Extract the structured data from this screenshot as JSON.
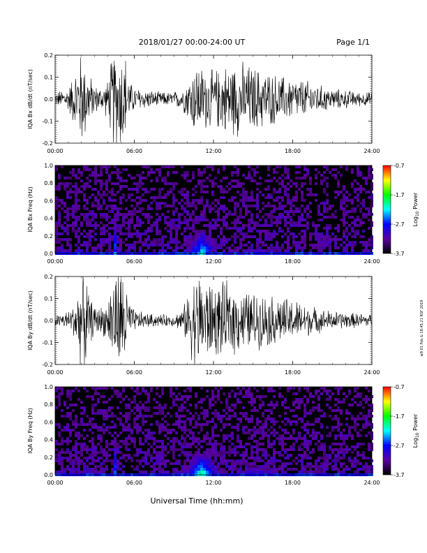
{
  "header": {
    "title": "2018/01/27  00:00-24:00 UT",
    "page": "Page 1/1"
  },
  "x_axis": {
    "ticks": [
      "00:00",
      "06:00",
      "12:00",
      "18:00",
      "24:00"
    ],
    "label": "Universal Time (hh:mm)"
  },
  "colorbar": {
    "ticks": [
      "-0.7",
      "-1.7",
      "-2.7",
      "-3.7"
    ],
    "label_prefix": "Log",
    "label_sub": "10",
    "label_suffix": " Power",
    "colors": [
      "#000000",
      "#5a00a0",
      "#0000ff",
      "#00ffff",
      "#00ff00",
      "#ffff00",
      "#ff0000"
    ]
  },
  "side_note": "w9 01 Feb & 18:45:21 RSF 2019",
  "chart_data": [
    {
      "type": "line",
      "ylabel": "IQA Bx dB/dt (nT/sec)",
      "yticks": [
        "0.2",
        "0.1",
        "0.0",
        "-0.1",
        "-0.2"
      ],
      "ylim": [
        -0.2,
        0.2
      ],
      "xlim": [
        0,
        24
      ],
      "envelope": [
        [
          0,
          0.03
        ],
        [
          1,
          0.05
        ],
        [
          1.5,
          0.12
        ],
        [
          2,
          0.21
        ],
        [
          2.5,
          0.12
        ],
        [
          3,
          0.06
        ],
        [
          3.5,
          0.05
        ],
        [
          4,
          0.08
        ],
        [
          4.4,
          0.21
        ],
        [
          5.3,
          0.21
        ],
        [
          5.6,
          0.08
        ],
        [
          6,
          0.05
        ],
        [
          7,
          0.04
        ],
        [
          8,
          0.03
        ],
        [
          9,
          0.03
        ],
        [
          9.7,
          0.05
        ],
        [
          10.2,
          0.1
        ],
        [
          10.7,
          0.16
        ],
        [
          11,
          0.14
        ],
        [
          12,
          0.12
        ],
        [
          13,
          0.15
        ],
        [
          14,
          0.16
        ],
        [
          15,
          0.14
        ],
        [
          16,
          0.12
        ],
        [
          17,
          0.1
        ],
        [
          18,
          0.09
        ],
        [
          19,
          0.08
        ],
        [
          20,
          0.06
        ],
        [
          21,
          0.045
        ],
        [
          22,
          0.04
        ],
        [
          23,
          0.03
        ],
        [
          24,
          0.03
        ]
      ]
    },
    {
      "type": "heatmap",
      "ylabel": "IQA Bx Freq (Hz)",
      "yticks": [
        "1.0",
        "0.8",
        "0.6",
        "0.4",
        "0.2",
        "0.0"
      ],
      "ylim": [
        0,
        1
      ],
      "xlim": [
        0,
        24
      ],
      "zlim": [
        -3.7,
        -0.7
      ],
      "features": [
        {
          "t": 4.5,
          "w": 0.15,
          "fmax": 0.55,
          "level": -1.6
        },
        {
          "t": 5.4,
          "w": 0.08,
          "fmax": 0.2,
          "level": -2.2
        },
        {
          "t": 1.7,
          "w": 0.6,
          "fmax": 0.12,
          "level": -2.4
        },
        {
          "t": 11.0,
          "w": 1.6,
          "fmax": 0.35,
          "level": -2.1
        },
        {
          "t": 15.0,
          "w": 3.0,
          "fmax": 0.12,
          "level": -2.7
        },
        {
          "t": 17.6,
          "w": 0.3,
          "fmax": 0.42,
          "level": -3.0
        }
      ]
    },
    {
      "type": "line",
      "ylabel": "IQA By dB/dt (nT/sec)",
      "yticks": [
        "0.2",
        "0.1",
        "0.0",
        "-0.1",
        "-0.2"
      ],
      "ylim": [
        -0.2,
        0.2
      ],
      "xlim": [
        0,
        24
      ],
      "envelope": [
        [
          0,
          0.025
        ],
        [
          1,
          0.04
        ],
        [
          1.5,
          0.08
        ],
        [
          2,
          0.21
        ],
        [
          2.3,
          0.21
        ],
        [
          2.6,
          0.1
        ],
        [
          3,
          0.06
        ],
        [
          3.5,
          0.06
        ],
        [
          4,
          0.08
        ],
        [
          4.4,
          0.21
        ],
        [
          5.3,
          0.21
        ],
        [
          5.6,
          0.08
        ],
        [
          6,
          0.045
        ],
        [
          7,
          0.03
        ],
        [
          8,
          0.025
        ],
        [
          9,
          0.025
        ],
        [
          9.7,
          0.05
        ],
        [
          10.2,
          0.14
        ],
        [
          10.7,
          0.21
        ],
        [
          11.5,
          0.18
        ],
        [
          12,
          0.15
        ],
        [
          13,
          0.16
        ],
        [
          14,
          0.13
        ],
        [
          15,
          0.12
        ],
        [
          16,
          0.11
        ],
        [
          17,
          0.1
        ],
        [
          18,
          0.09
        ],
        [
          19,
          0.07
        ],
        [
          20,
          0.05
        ],
        [
          21,
          0.04
        ],
        [
          22,
          0.035
        ],
        [
          23,
          0.03
        ],
        [
          24,
          0.03
        ]
      ]
    },
    {
      "type": "heatmap",
      "ylabel": "IQA By Freq (Hz)",
      "yticks": [
        "1.0",
        "0.8",
        "0.6",
        "0.4",
        "0.2",
        "0.0"
      ],
      "ylim": [
        0,
        1
      ],
      "xlim": [
        0,
        24
      ],
      "zlim": [
        -3.7,
        -0.7
      ],
      "features": [
        {
          "t": 4.5,
          "w": 0.15,
          "fmax": 0.6,
          "level": -1.7
        },
        {
          "t": 5.4,
          "w": 0.08,
          "fmax": 0.25,
          "level": -2.2
        },
        {
          "t": 2.3,
          "w": 0.6,
          "fmax": 0.15,
          "level": -2.4
        },
        {
          "t": 11.0,
          "w": 1.8,
          "fmax": 0.35,
          "level": -1.9
        },
        {
          "t": 15.0,
          "w": 3.5,
          "fmax": 0.15,
          "level": -2.6
        },
        {
          "t": 17.1,
          "w": 0.3,
          "fmax": 0.4,
          "level": -3.0
        },
        {
          "t": 18.7,
          "w": 0.3,
          "fmax": 0.45,
          "level": -3.0
        }
      ]
    }
  ]
}
